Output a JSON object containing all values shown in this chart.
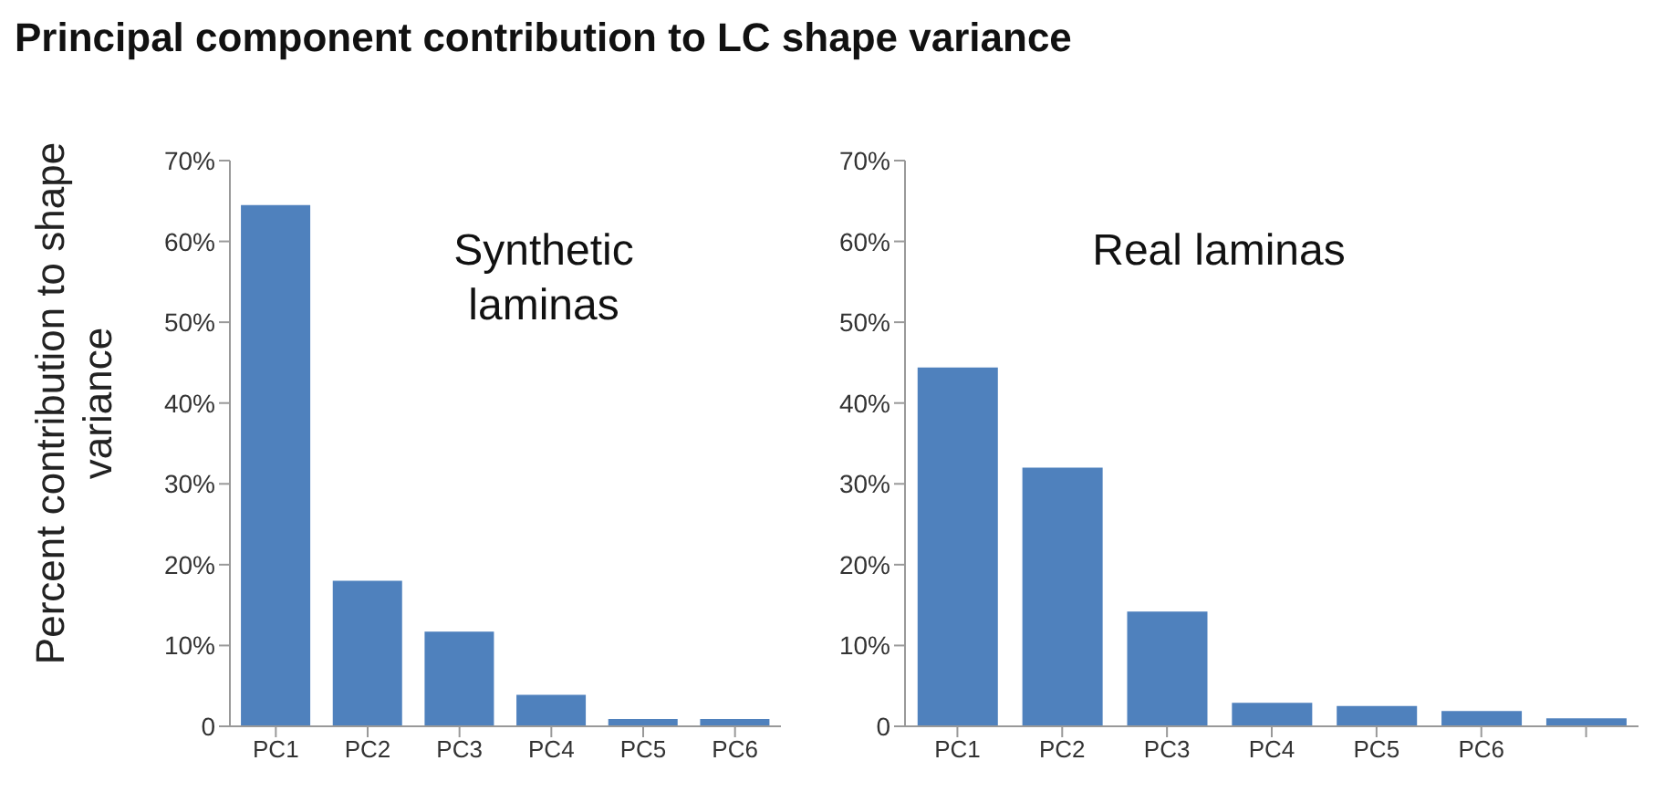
{
  "chart_data": [
    {
      "type": "bar",
      "title": "Principal component contribution to LC shape variance",
      "ylabel": "Percent contribution to shape variance",
      "categories": [
        "PC1",
        "PC2",
        "PC3",
        "PC4",
        "PC5",
        "PC6"
      ],
      "values": [
        64.5,
        18,
        11.7,
        3.9,
        0.9,
        0.9
      ],
      "color": "#4f81bd",
      "ylim": [
        0,
        70
      ],
      "yticks": [
        0,
        {
          "value": 10,
          "label": "10%"
        },
        {
          "value": 20,
          "label": "20%"
        },
        {
          "value": 30,
          "label": "30%"
        },
        {
          "value": 40,
          "label": "40%"
        },
        {
          "value": 50,
          "label": "50%"
        },
        {
          "value": 60,
          "label": "60%"
        },
        {
          "value": 70,
          "label": "70%"
        }
      ],
      "annotations": [
        "Synthetic laminas"
      ]
    },
    {
      "type": "bar",
      "categories": [
        "PC1",
        "PC2",
        "PC3",
        "PC4",
        "PC5",
        "PC6",
        null
      ],
      "values": [
        44.4,
        32,
        14.2,
        2.9,
        2.5,
        1.9,
        1.0
      ],
      "color": "#4f81bd",
      "ylim": [
        0,
        70
      ],
      "yticks": [
        0,
        {
          "value": 10,
          "label": "10%"
        },
        {
          "value": 20,
          "label": "20%"
        },
        {
          "value": 30,
          "label": "30%"
        },
        {
          "value": 40,
          "label": "40%"
        },
        {
          "value": 50,
          "label": "50%"
        },
        {
          "value": 60,
          "label": "60%"
        },
        {
          "value": 70,
          "label": "70%"
        }
      ],
      "annotations": [
        "Real laminas"
      ]
    }
  ]
}
